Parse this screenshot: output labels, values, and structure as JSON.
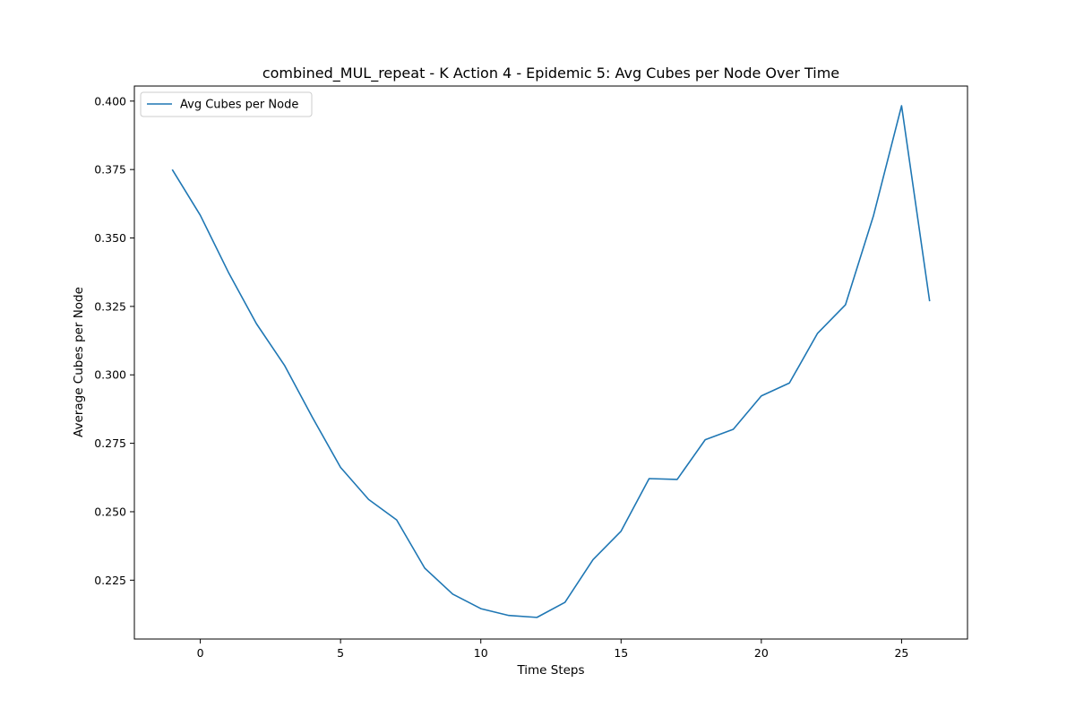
{
  "chart_data": {
    "type": "line",
    "title": "combined_MUL_repeat - K Action 4 - Epidemic 5: Avg Cubes per Node Over Time",
    "xlabel": "Time Steps",
    "ylabel": "Average Cubes per Node",
    "xlim": [
      -2.35,
      27.35
    ],
    "ylim": [
      0.2035,
      0.4055
    ],
    "xticks": [
      0,
      5,
      10,
      15,
      20,
      25
    ],
    "yticks": [
      0.225,
      0.25,
      0.275,
      0.3,
      0.325,
      0.35,
      0.375,
      0.4
    ],
    "ytick_labels": [
      "0.225",
      "0.250",
      "0.275",
      "0.300",
      "0.325",
      "0.350",
      "0.375",
      "0.400"
    ],
    "grid": false,
    "legend_position": "top-left",
    "series": [
      {
        "name": "Avg Cubes per Node",
        "color": "#1f77b4",
        "x": [
          -1,
          0,
          1,
          2,
          3,
          4,
          5,
          6,
          7,
          8,
          9,
          10,
          11,
          12,
          13,
          14,
          15,
          16,
          17,
          18,
          19,
          20,
          21,
          22,
          23,
          24,
          25,
          26
        ],
        "y": [
          0.375,
          0.3583,
          0.3375,
          0.3187,
          0.3035,
          0.2844,
          0.2662,
          0.2545,
          0.247,
          0.2294,
          0.2199,
          0.2146,
          0.2121,
          0.2114,
          0.2169,
          0.2325,
          0.2429,
          0.2621,
          0.2618,
          0.2763,
          0.2801,
          0.2923,
          0.297,
          0.3151,
          0.3256,
          0.3582,
          0.3983,
          0.3269
        ]
      }
    ]
  }
}
